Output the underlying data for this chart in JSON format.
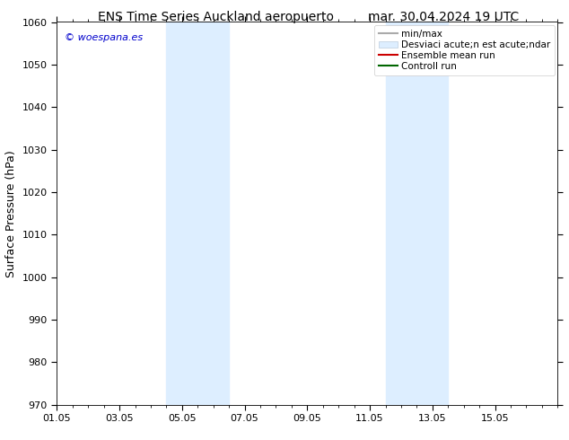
{
  "title_left": "ENS Time Series Auckland aeropuerto",
  "title_right": "mar. 30.04.2024 19 UTC",
  "ylabel": "Surface Pressure (hPa)",
  "xlim": [
    0,
    16
  ],
  "ylim": [
    970,
    1060
  ],
  "yticks": [
    970,
    980,
    990,
    1000,
    1010,
    1020,
    1030,
    1040,
    1050,
    1060
  ],
  "xtick_labels": [
    "01.05",
    "03.05",
    "05.05",
    "07.05",
    "09.05",
    "11.05",
    "13.05",
    "15.05"
  ],
  "xtick_positions": [
    0,
    2,
    4,
    6,
    8,
    10,
    12,
    14
  ],
  "shaded_regions": [
    {
      "x_start": 3.5,
      "x_end": 4.5,
      "color": "#ddeeff"
    },
    {
      "x_start": 4.5,
      "x_end": 5.5,
      "color": "#ddeeff"
    },
    {
      "x_start": 10.5,
      "x_end": 11.5,
      "color": "#ddeeff"
    },
    {
      "x_start": 11.5,
      "x_end": 12.5,
      "color": "#ddeeff"
    }
  ],
  "watermark_text": "© woespana.es",
  "watermark_color": "#0000cc",
  "background_color": "#ffffff",
  "legend_label_minmax": "min/max",
  "legend_label_std": "Desviaci acute;n est acute;ndar",
  "legend_label_ensemble": "Ensemble mean run",
  "legend_label_control": "Controll run",
  "legend_color_minmax": "#aaaaaa",
  "legend_color_std": "#ddeeff",
  "legend_color_ensemble": "#cc0000",
  "legend_color_control": "#006600",
  "title_fontsize": 10,
  "ylabel_fontsize": 9,
  "tick_fontsize": 8,
  "legend_fontsize": 7.5,
  "watermark_fontsize": 8
}
